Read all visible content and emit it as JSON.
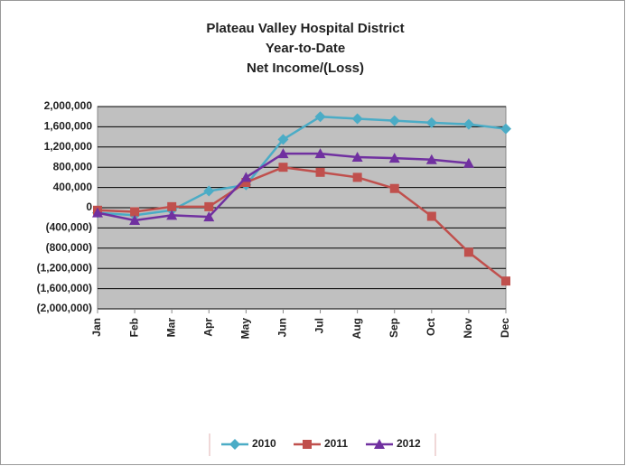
{
  "chart_data": {
    "type": "line",
    "title": [
      "Plateau Valley Hospital District",
      "Year-to-Date",
      "Net Income/(Loss)"
    ],
    "categories": [
      "Jan",
      "Feb",
      "Mar",
      "Apr",
      "May",
      "Jun",
      "Jul",
      "Aug",
      "Sep",
      "Oct",
      "Nov",
      "Dec"
    ],
    "series": [
      {
        "name": "2010",
        "color": "#4bacc6",
        "marker": "diamond",
        "values": [
          -100000,
          -150000,
          -50000,
          330000,
          450000,
          1350000,
          1800000,
          1760000,
          1720000,
          1680000,
          1650000,
          1560000
        ]
      },
      {
        "name": "2011",
        "color": "#c0504d",
        "marker": "square",
        "values": [
          -50000,
          -80000,
          20000,
          20000,
          500000,
          800000,
          700000,
          600000,
          380000,
          -170000,
          -880000,
          -1450000
        ]
      },
      {
        "name": "2012",
        "color": "#7030a0",
        "marker": "triangle",
        "values": [
          -100000,
          -250000,
          -150000,
          -180000,
          600000,
          1070000,
          1070000,
          1000000,
          980000,
          950000,
          880000,
          null
        ]
      }
    ],
    "ylim": [
      -2000000,
      2000000
    ],
    "yticks": [
      {
        "value": 2000000,
        "label": "2,000,000"
      },
      {
        "value": 1600000,
        "label": "1,600,000"
      },
      {
        "value": 1200000,
        "label": "1,200,000"
      },
      {
        "value": 800000,
        "label": "800,000"
      },
      {
        "value": 400000,
        "label": "400,000"
      },
      0,
      {
        "value": -400000,
        "label": "(400,000)"
      },
      {
        "value": -800000,
        "label": "(800,000)"
      },
      {
        "value": -1200000,
        "label": "(1,200,000)"
      },
      {
        "value": -1600000,
        "label": "(1,600,000)"
      },
      {
        "value": -2000000,
        "label": "(2,000,000)"
      }
    ],
    "grid": true,
    "legend": "bottom",
    "plot_background": "#c0c0c0"
  }
}
